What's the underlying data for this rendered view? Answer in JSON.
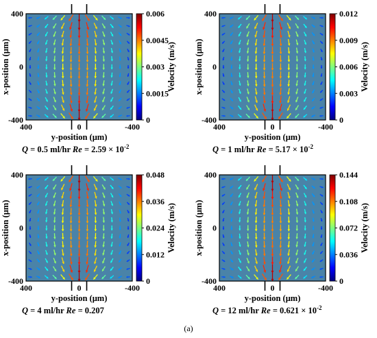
{
  "figure_caption": "(a)",
  "colors": {
    "background": "#4a83a8",
    "colormap": [
      "#00007f",
      "#0000ff",
      "#007fff",
      "#00ffff",
      "#7fff7f",
      "#ffff00",
      "#ff7f00",
      "#ff0000",
      "#7f0000"
    ]
  },
  "chart_data": [
    {
      "type": "quiver",
      "caption": {
        "q_label": "Q",
        "q_value": "= 0.5 ml/hr",
        "re_label": "Re",
        "re_value": "= 2.59 × 10",
        "re_exp": "-2"
      },
      "xlabel": "y-position (μm)",
      "ylabel": "x-position (μm)",
      "x_ticks": [
        "400",
        "0",
        "-400"
      ],
      "y_ticks": [
        "400",
        "0",
        "-400"
      ],
      "xlim": [
        400,
        -400
      ],
      "ylim": [
        -400,
        400
      ],
      "colorbar": {
        "label": "Velocity (m/s)",
        "ticks": [
          "0.006",
          "0.0045",
          "0.003",
          "0.0015",
          "0"
        ],
        "range": [
          0,
          0.006
        ]
      }
    },
    {
      "type": "quiver",
      "caption": {
        "q_label": "Q",
        "q_value": "= 1 ml/hr",
        "re_label": "Re",
        "re_value": "= 5.17 × 10",
        "re_exp": "-2"
      },
      "xlabel": "y-position (μm)",
      "ylabel": "x-position (μm)",
      "x_ticks": [
        "400",
        "0",
        "-400"
      ],
      "y_ticks": [
        "400",
        "0",
        "-400"
      ],
      "xlim": [
        400,
        -400
      ],
      "ylim": [
        -400,
        400
      ],
      "colorbar": {
        "label": "Velocity (m/s)",
        "ticks": [
          "0.012",
          "0.009",
          "0.006",
          "0.003",
          "0"
        ],
        "range": [
          0,
          0.012
        ]
      }
    },
    {
      "type": "quiver",
      "caption": {
        "q_label": "Q",
        "q_value": "= 4 ml/hr",
        "re_label": "Re",
        "re_value": "= 0.207",
        "re_exp": ""
      },
      "xlabel": "y-position (μm)",
      "ylabel": "x-position (μm)",
      "x_ticks": [
        "400",
        "0",
        "-400"
      ],
      "y_ticks": [
        "400",
        "0",
        "-400"
      ],
      "xlim": [
        400,
        -400
      ],
      "ylim": [
        -400,
        400
      ],
      "colorbar": {
        "label": "Velocity (m/s)",
        "ticks": [
          "0.048",
          "0.036",
          "0.024",
          "0.012",
          "0"
        ],
        "range": [
          0,
          0.048
        ]
      }
    },
    {
      "type": "quiver",
      "caption": {
        "q_label": "Q",
        "q_value": "= 12 ml/hr",
        "re_label": "Re",
        "re_value": "= 0.621 × 10",
        "re_exp": "-2"
      },
      "xlabel": "y-position (μm)",
      "ylabel": "x-position (μm)",
      "x_ticks": [
        "400",
        "0",
        "-400"
      ],
      "y_ticks": [
        "400",
        "0",
        "-400"
      ],
      "xlim": [
        400,
        -400
      ],
      "ylim": [
        -400,
        400
      ],
      "colorbar": {
        "label": "Velocity (m/s)",
        "ticks": [
          "0.144",
          "0.108",
          "0.072",
          "0.036",
          "0"
        ],
        "range": [
          0,
          0.144
        ]
      }
    }
  ]
}
